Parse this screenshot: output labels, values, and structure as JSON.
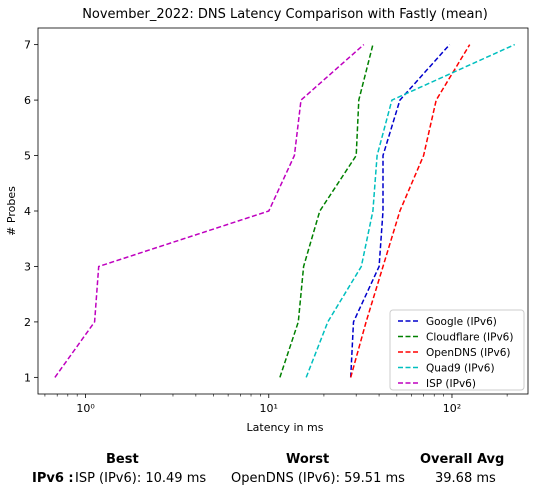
{
  "chart_data": {
    "type": "line",
    "title": "November_2022: DNS Latency Comparison with Fastly (mean)",
    "xlabel": "Latency in ms",
    "ylabel": "# Probes",
    "xscale": "log",
    "xlim": [
      0.55,
      260
    ],
    "ylim": [
      0.7,
      7.3
    ],
    "xticks": [
      {
        "value": 1,
        "label": "10⁰"
      },
      {
        "value": 10,
        "label": "10¹"
      },
      {
        "value": 100,
        "label": "10²"
      }
    ],
    "yticks": [
      1,
      2,
      3,
      4,
      5,
      6,
      7
    ],
    "legend_position": "lower-right",
    "series": [
      {
        "name": "Google (IPv6)",
        "color": "#0000cc",
        "x": [
          28,
          29,
          40,
          42,
          42,
          52,
          97
        ],
        "y": [
          1,
          2,
          3,
          4,
          5,
          6,
          7
        ]
      },
      {
        "name": "Cloudflare (IPv6)",
        "color": "#008000",
        "x": [
          11.5,
          14.5,
          15.5,
          19,
          30,
          31,
          37
        ],
        "y": [
          1,
          2,
          3,
          4,
          5,
          6,
          7
        ]
      },
      {
        "name": "OpenDNS (IPv6)",
        "color": "#ff0000",
        "x": [
          28,
          34,
          42,
          52,
          70,
          82,
          125
        ],
        "y": [
          1,
          2,
          3,
          4,
          5,
          6,
          7
        ]
      },
      {
        "name": "Quad9 (IPv6)",
        "color": "#00bfbf",
        "x": [
          16,
          21,
          32,
          37,
          39,
          47,
          220
        ],
        "y": [
          1,
          2,
          3,
          4,
          5,
          6,
          7
        ]
      },
      {
        "name": "ISP (IPv6)",
        "color": "#bf00bf",
        "x": [
          0.68,
          1.12,
          1.18,
          10,
          13.8,
          15,
          33
        ],
        "y": [
          1,
          2,
          3,
          4,
          5,
          6,
          7
        ]
      }
    ]
  },
  "summary": {
    "best_header": "Best",
    "worst_header": "Worst",
    "avg_header": "Overall Avg",
    "row_label": "IPv6 :",
    "best_value": "ISP (IPv6): 10.49 ms",
    "worst_value": "OpenDNS (IPv6): 59.51 ms",
    "avg_value": "39.68 ms"
  }
}
